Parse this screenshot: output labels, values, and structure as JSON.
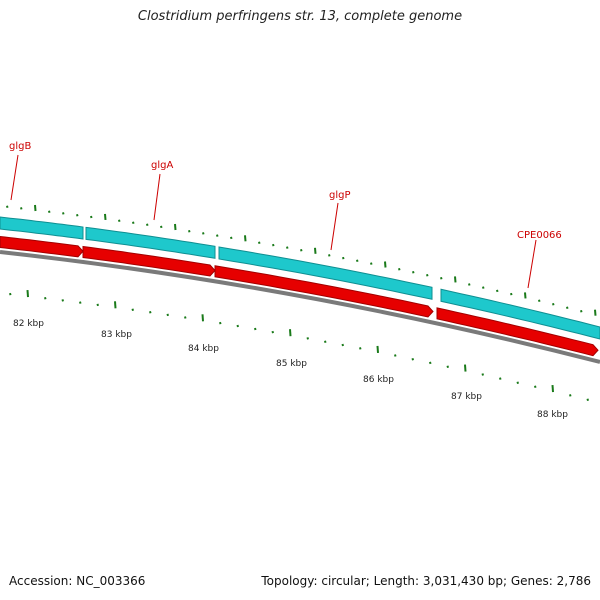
{
  "title": "Clostridium perfringens str. 13, complete genome",
  "footer": {
    "accession": "Accession: NC_003366",
    "summary": "Topology: circular; Length: 3,031,430 bp; Genes: 2,786"
  },
  "colors": {
    "backbone": "#7a7a7a",
    "gene_forward": "#1ec8cc",
    "gene_reverse": "#e60000",
    "gene_label": "#cc0000",
    "tick": "#1a7a1a"
  },
  "gene_labels": [
    "glgB",
    "glgA",
    "glgP",
    "CPE0066"
  ],
  "kbp_labels": [
    "82 kbp",
    "83 kbp",
    "84 kbp",
    "85 kbp",
    "86 kbp",
    "87 kbp",
    "88 kbp"
  ]
}
